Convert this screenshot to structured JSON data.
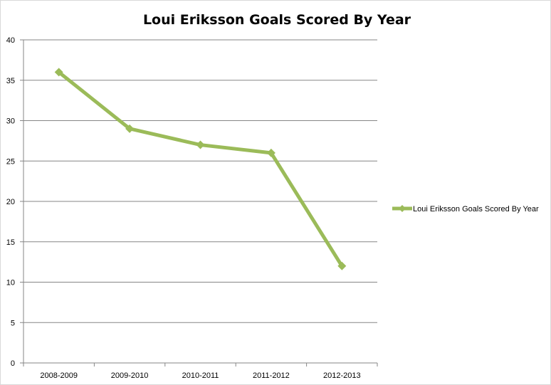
{
  "chart_data": {
    "type": "line",
    "title": "Loui Eriksson Goals Scored By Year",
    "xlabel": "",
    "ylabel": "",
    "categories": [
      "2008-2009",
      "2009-2010",
      "2010-2011",
      "2011-2012",
      "2012-2013"
    ],
    "series": [
      {
        "name": "Loui Eriksson Goals Scored By Year",
        "values": [
          36,
          29,
          27,
          26,
          12
        ],
        "color": "#9BBB59"
      }
    ],
    "ylim": [
      0,
      40
    ],
    "yticks": [
      "0",
      "5",
      "10",
      "15",
      "20",
      "25",
      "30",
      "35",
      "40"
    ],
    "grid": true,
    "legend_position": "right",
    "marker": "diamond",
    "gridline_color": "#868686"
  }
}
